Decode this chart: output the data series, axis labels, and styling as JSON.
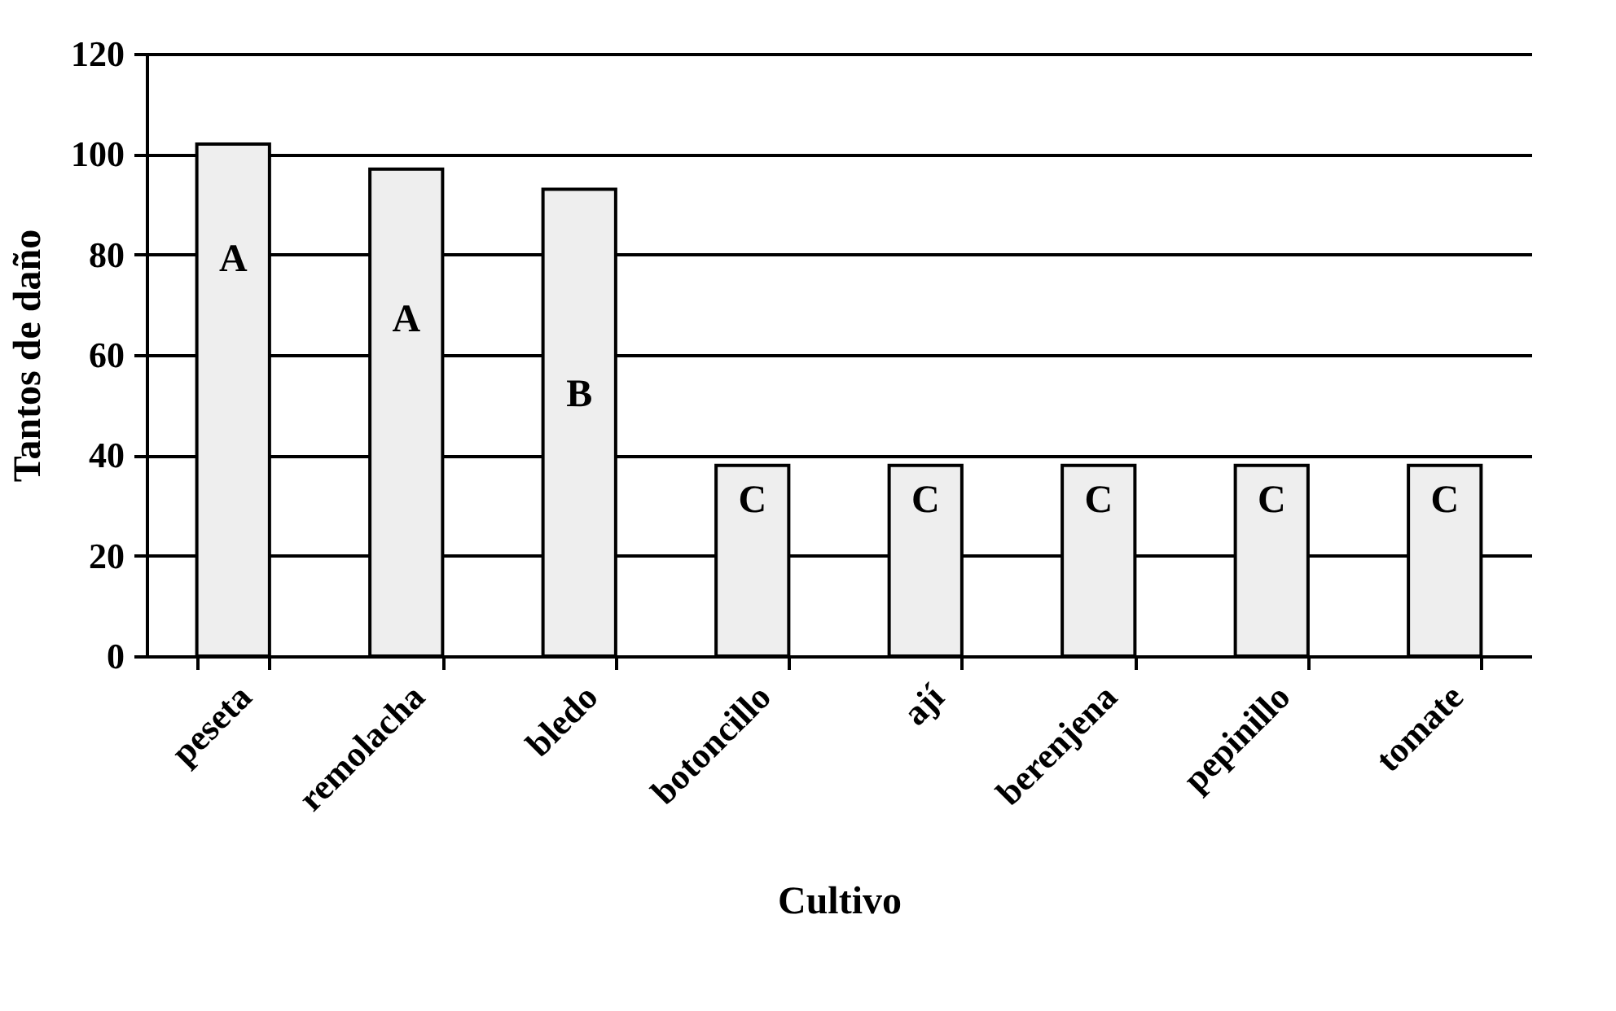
{
  "chart_data": {
    "type": "bar",
    "xlabel": "Cultivo",
    "ylabel": "Tantos de daño",
    "categories": [
      "peseta",
      "remolacha",
      "bledo",
      "botoncillo",
      "ají",
      "berenjena",
      "pepinillo",
      "tomate"
    ],
    "values": [
      102,
      97,
      93,
      38,
      38,
      38,
      38,
      38
    ],
    "color": "#eeeeee",
    "ylim": [
      0,
      120
    ],
    "yticks": [
      0,
      20,
      40,
      60,
      80,
      100,
      120
    ],
    "grid": "y",
    "annotations": [
      {
        "text": "A",
        "x": "peseta",
        "y": 79
      },
      {
        "text": "A",
        "x": "remolacha",
        "y": 67
      },
      {
        "text": "B",
        "x": "bledo",
        "y": 52
      },
      {
        "text": "C",
        "x": "botoncillo",
        "y": 31
      },
      {
        "text": "C",
        "x": "ají",
        "y": 31
      },
      {
        "text": "C",
        "x": "berenjena",
        "y": 31
      },
      {
        "text": "C",
        "x": "pepinillo",
        "y": 31
      },
      {
        "text": "C",
        "x": "tomate",
        "y": 31
      }
    ]
  }
}
